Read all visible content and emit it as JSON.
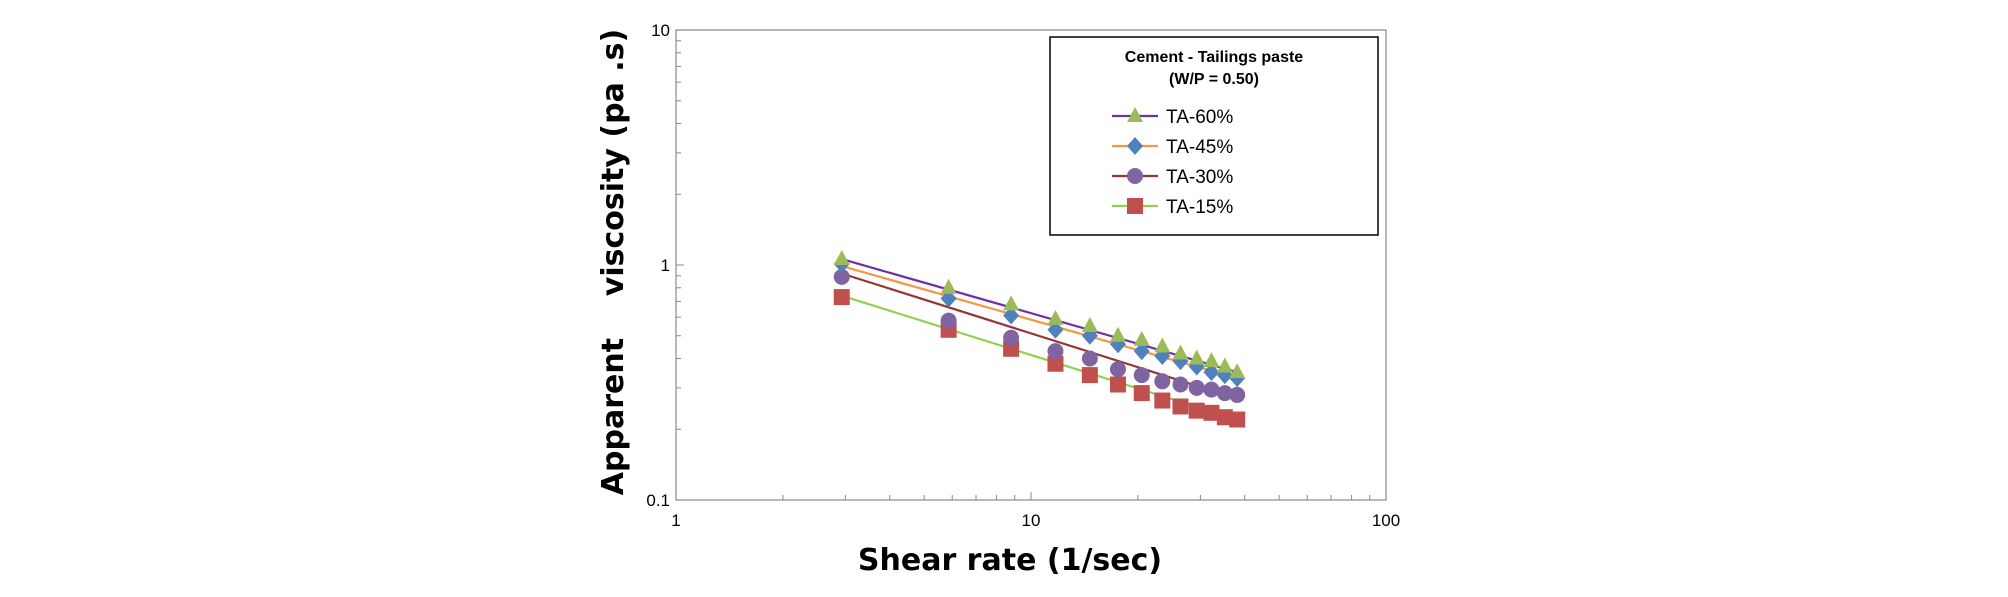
{
  "chart_data": {
    "type": "line",
    "xlabel": "Shear rate (1/sec)",
    "ylabel": "Apparent    viscosity (pa .s)",
    "xscale": "log",
    "yscale": "log",
    "xlim": [
      1,
      100
    ],
    "ylim": [
      0.1,
      10
    ],
    "xticks": [
      "1",
      "10",
      "100"
    ],
    "yticks": [
      "0.1",
      "1",
      "10"
    ],
    "legend": {
      "title_line1": "Cement - Tailings paste",
      "title_line2": "(W/P = 0.50)",
      "placement": "top-right"
    },
    "x": [
      2.93,
      5.86,
      8.79,
      11.72,
      14.65,
      17.58,
      20.51,
      23.44,
      26.37,
      29.3,
      32.23,
      35.16,
      38.09
    ],
    "series": [
      {
        "name": "TA-60%",
        "marker": "triangle",
        "marker_color": "#9bbb59",
        "line_color": "#7030a0",
        "values": [
          1.06,
          0.8,
          0.68,
          0.59,
          0.55,
          0.5,
          0.48,
          0.45,
          0.42,
          0.4,
          0.39,
          0.37,
          0.35
        ],
        "fit": [
          1.06,
          0.35
        ]
      },
      {
        "name": "TA-45%",
        "marker": "diamond",
        "marker_color": "#4f81bd",
        "line_color": "#f79646",
        "values": [
          1.01,
          0.72,
          0.61,
          0.53,
          0.5,
          0.46,
          0.43,
          0.41,
          0.39,
          0.37,
          0.35,
          0.34,
          0.33
        ],
        "fit": [
          0.99,
          0.33
        ]
      },
      {
        "name": "TA-30%",
        "marker": "circle",
        "marker_color": "#8064a2",
        "line_color": "#943634",
        "values": [
          0.89,
          0.58,
          0.49,
          0.43,
          0.4,
          0.36,
          0.34,
          0.32,
          0.31,
          0.3,
          0.295,
          0.285,
          0.28
        ],
        "fit": [
          0.92,
          0.27
        ]
      },
      {
        "name": "TA-15%",
        "marker": "square",
        "marker_color": "#c0504d",
        "line_color": "#92d050",
        "values": [
          0.73,
          0.53,
          0.44,
          0.38,
          0.34,
          0.31,
          0.285,
          0.265,
          0.25,
          0.24,
          0.235,
          0.225,
          0.22
        ],
        "fit": [
          0.74,
          0.22
        ]
      }
    ],
    "grid": false
  }
}
